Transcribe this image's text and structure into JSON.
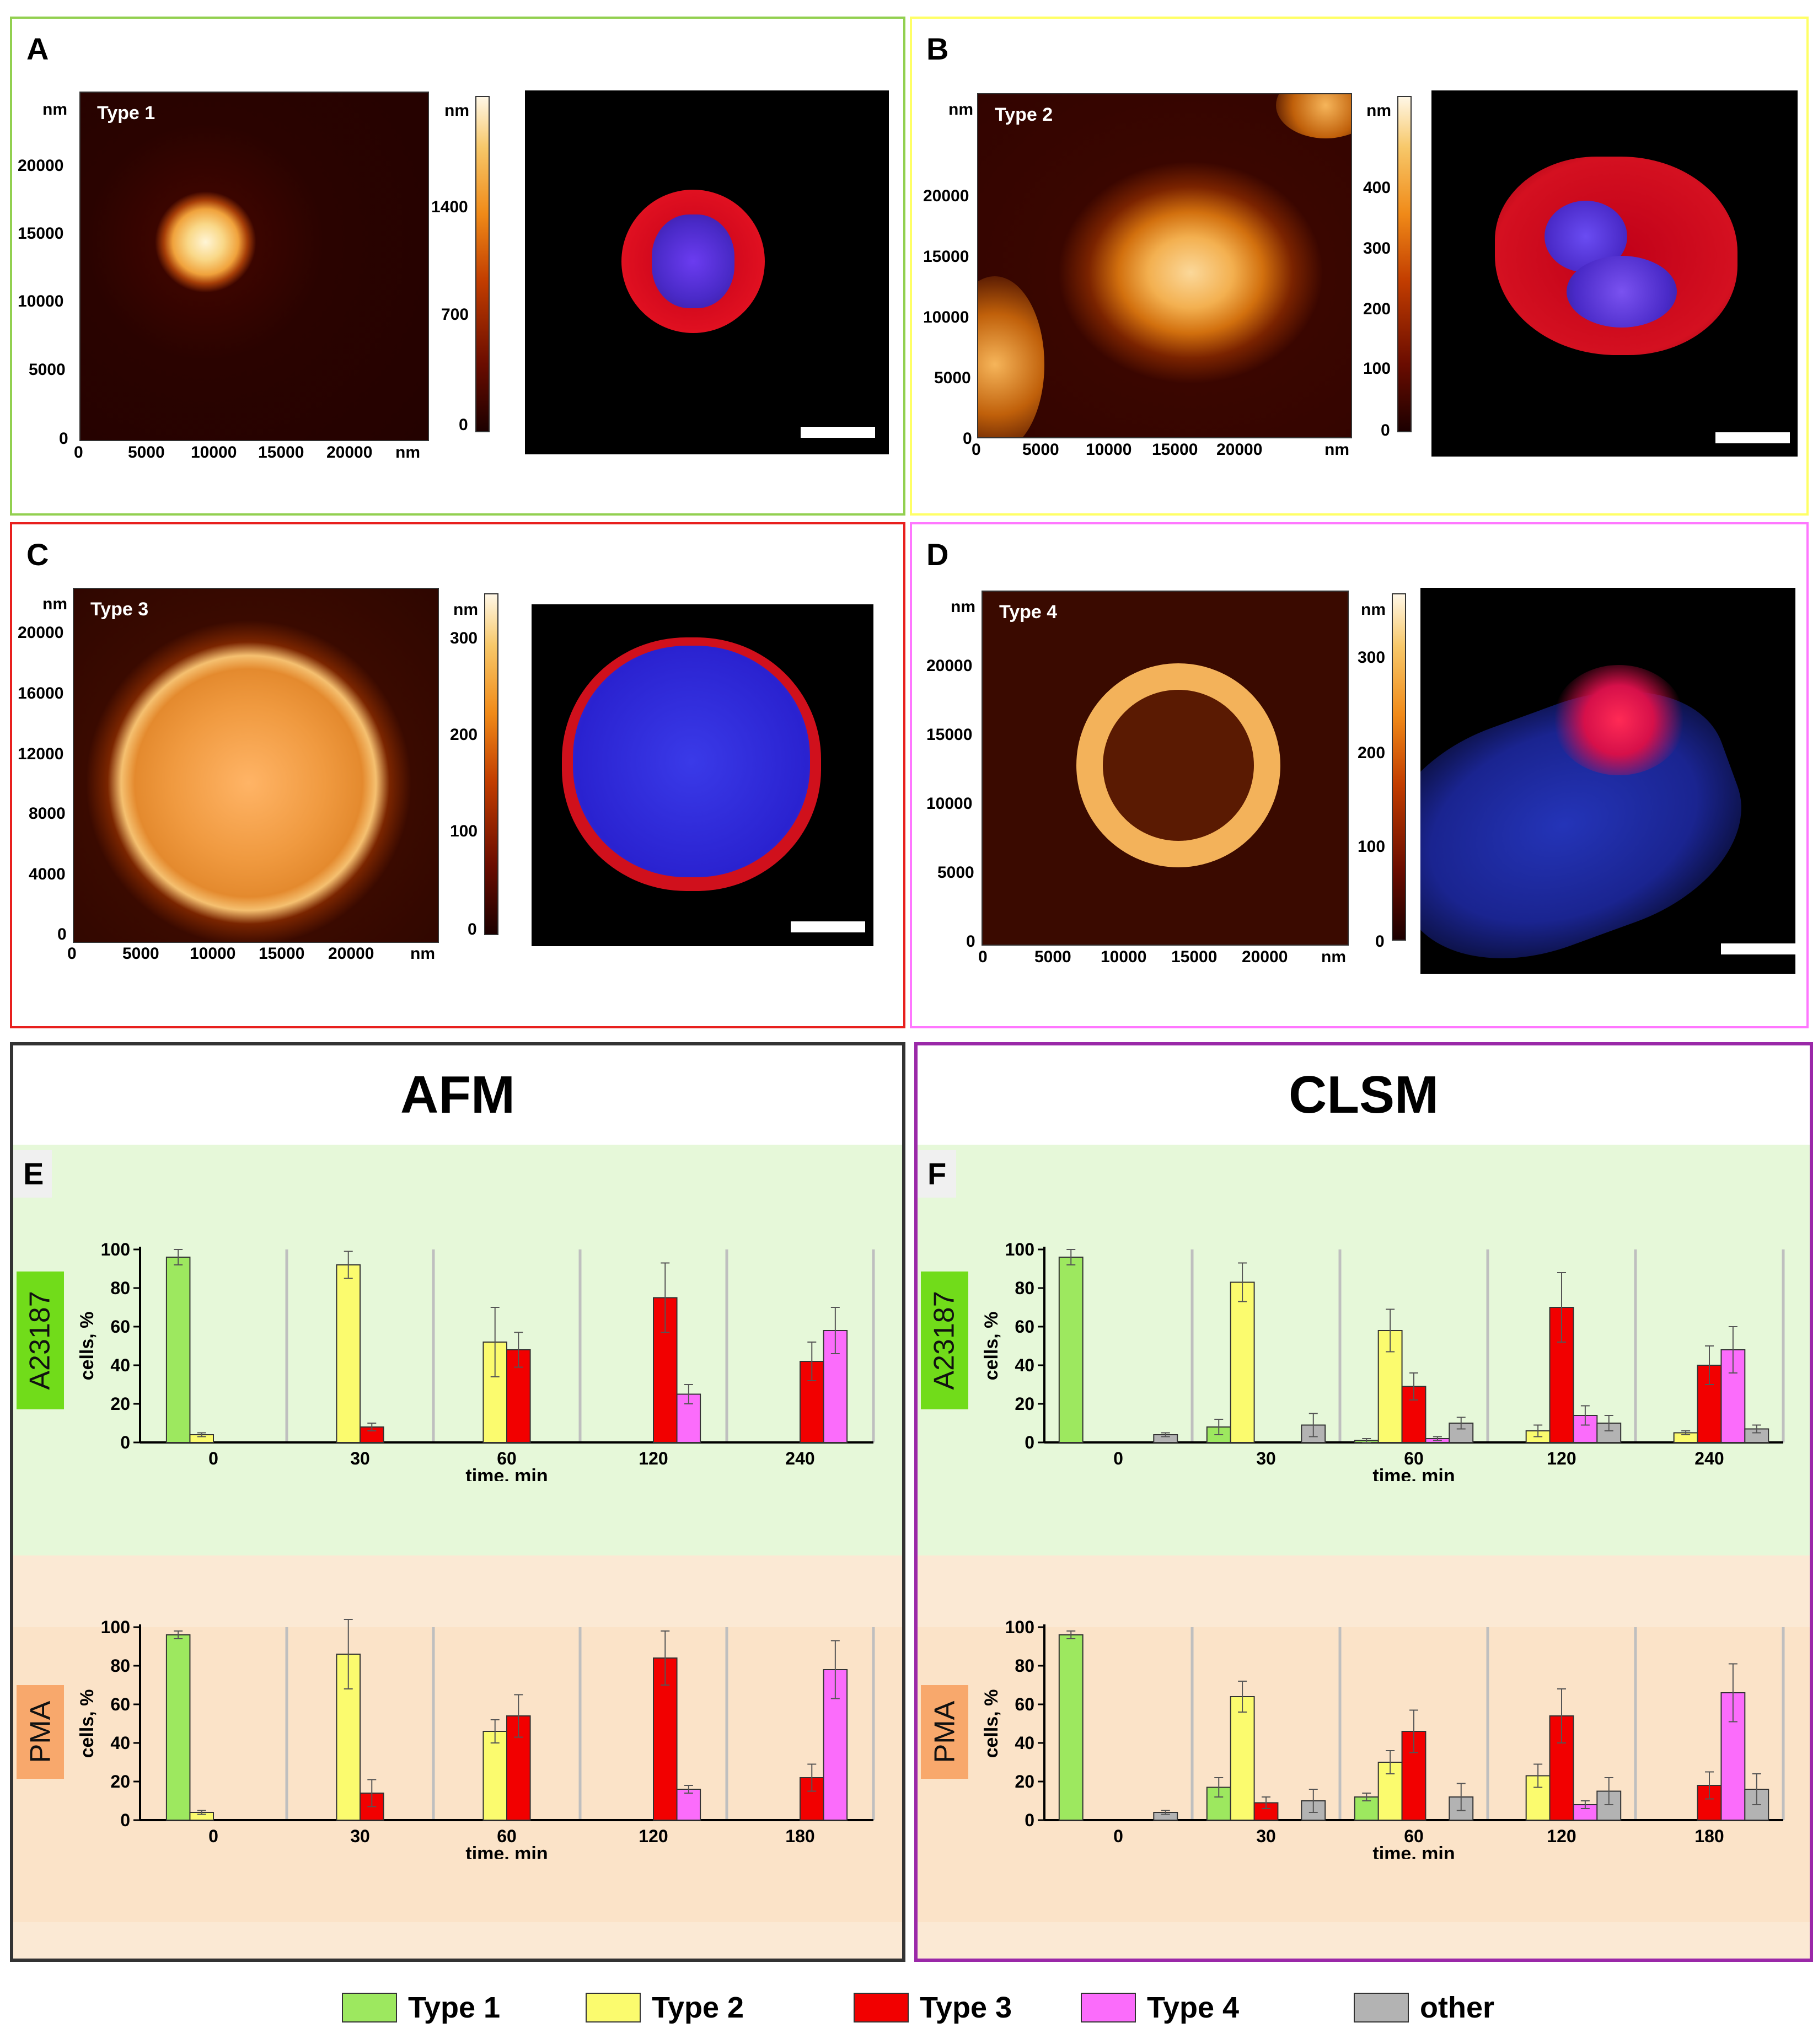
{
  "panels": {
    "A": {
      "label": "A",
      "type_label": "Type 1",
      "nm": "nm",
      "y_ticks": [
        "20000",
        "15000",
        "10000",
        "5000",
        "0"
      ],
      "x_ticks": [
        "0",
        "5000",
        "10000",
        "15000",
        "20000",
        "nm"
      ],
      "cbar_ticks": [
        "1400",
        "700",
        "0"
      ]
    },
    "B": {
      "label": "B",
      "type_label": "Type 2",
      "nm": "nm",
      "y_ticks": [
        "20000",
        "15000",
        "10000",
        "5000",
        "0"
      ],
      "x_ticks": [
        "0",
        "5000",
        "10000",
        "15000",
        "20000",
        "nm"
      ],
      "cbar_ticks": [
        "400",
        "300",
        "200",
        "100",
        "0"
      ]
    },
    "C": {
      "label": "C",
      "type_label": "Type 3",
      "nm": "nm",
      "y_ticks": [
        "20000",
        "16000",
        "12000",
        "8000",
        "4000",
        "0"
      ],
      "x_ticks": [
        "0",
        "5000",
        "10000",
        "15000",
        "20000",
        "nm"
      ],
      "cbar_ticks": [
        "300",
        "200",
        "100",
        "0"
      ]
    },
    "D": {
      "label": "D",
      "type_label": "Type 4",
      "nm": "nm",
      "y_ticks": [
        "20000",
        "15000",
        "10000",
        "5000",
        "0"
      ],
      "x_ticks": [
        "0",
        "5000",
        "10000",
        "15000",
        "20000",
        "nm"
      ],
      "cbar_ticks": [
        "300",
        "200",
        "100",
        "0"
      ]
    }
  },
  "section_titles": {
    "afm": "AFM",
    "clsm": "CLSM"
  },
  "section_labels": {
    "e": "E",
    "f": "F"
  },
  "row_labels": {
    "a23187": "A23187",
    "pma": "PMA"
  },
  "colors": {
    "type1": "#9de85f",
    "type2": "#fbfb6e",
    "type3": "#f20000",
    "type4": "#fb6cfb",
    "other": "#b3b3b3",
    "green_band": "#e6f8d9",
    "orange_band": "#fbe3c8",
    "a23187_tag": "#71dc1a",
    "pma_tag": "#f8a86c"
  },
  "legend": [
    {
      "label": "Type 1",
      "color": "#9de85f"
    },
    {
      "label": "Type 2",
      "color": "#fbfb6e"
    },
    {
      "label": "Type 3",
      "color": "#f20000"
    },
    {
      "label": "Type 4",
      "color": "#fb6cfb"
    },
    {
      "label": "other",
      "color": "#b3b3b3"
    }
  ],
  "chart_data": [
    {
      "id": "E-A23187",
      "type": "bar",
      "title": "AFM A23187",
      "xlabel": "time, min",
      "ylabel": "cells, %",
      "ylim": [
        0,
        100
      ],
      "y_ticks": [
        "0",
        "20",
        "40",
        "60",
        "80",
        "100"
      ],
      "categories": [
        "0",
        "30",
        "60",
        "120",
        "240"
      ],
      "series": [
        {
          "name": "Type 1",
          "values": [
            96,
            0,
            0,
            0,
            0
          ],
          "errors": [
            4,
            0,
            0,
            0,
            0
          ]
        },
        {
          "name": "Type 2",
          "values": [
            4,
            92,
            52,
            0,
            0
          ],
          "errors": [
            1,
            7,
            18,
            0,
            0
          ]
        },
        {
          "name": "Type 3",
          "values": [
            0,
            8,
            48,
            75,
            42
          ],
          "errors": [
            0,
            2,
            9,
            18,
            10
          ]
        },
        {
          "name": "Type 4",
          "values": [
            0,
            0,
            0,
            25,
            58
          ],
          "errors": [
            0,
            0,
            0,
            5,
            12
          ]
        }
      ]
    },
    {
      "id": "F-A23187",
      "type": "bar",
      "title": "CLSM A23187",
      "xlabel": "time, min",
      "ylabel": "cells, %",
      "ylim": [
        0,
        100
      ],
      "y_ticks": [
        "0",
        "20",
        "40",
        "60",
        "80",
        "100"
      ],
      "categories": [
        "0",
        "30",
        "60",
        "120",
        "240"
      ],
      "series": [
        {
          "name": "Type 1",
          "values": [
            96,
            8,
            1,
            0,
            0
          ],
          "errors": [
            4,
            4,
            1,
            0,
            0
          ]
        },
        {
          "name": "Type 2",
          "values": [
            0,
            83,
            58,
            6,
            5
          ],
          "errors": [
            0,
            10,
            11,
            3,
            1
          ]
        },
        {
          "name": "Type 3",
          "values": [
            0,
            0,
            29,
            70,
            40
          ],
          "errors": [
            0,
            0,
            7,
            18,
            10
          ]
        },
        {
          "name": "Type 4",
          "values": [
            0,
            0,
            2,
            14,
            48
          ],
          "errors": [
            0,
            0,
            1,
            5,
            12
          ]
        },
        {
          "name": "other",
          "values": [
            4,
            9,
            10,
            10,
            7
          ],
          "errors": [
            1,
            6,
            3,
            4,
            2
          ]
        }
      ]
    },
    {
      "id": "E-PMA",
      "type": "bar",
      "title": "AFM PMA",
      "xlabel": "time, min",
      "ylabel": "cells, %",
      "ylim": [
        0,
        100
      ],
      "y_ticks": [
        "0",
        "20",
        "40",
        "60",
        "80",
        "100"
      ],
      "categories": [
        "0",
        "30",
        "60",
        "120",
        "180"
      ],
      "series": [
        {
          "name": "Type 1",
          "values": [
            96,
            0,
            0,
            0,
            0
          ],
          "errors": [
            2,
            0,
            0,
            0,
            0
          ]
        },
        {
          "name": "Type 2",
          "values": [
            4,
            86,
            46,
            0,
            0
          ],
          "errors": [
            1,
            18,
            6,
            0,
            0
          ]
        },
        {
          "name": "Type 3",
          "values": [
            0,
            14,
            54,
            84,
            22
          ],
          "errors": [
            0,
            7,
            11,
            14,
            7
          ]
        },
        {
          "name": "Type 4",
          "values": [
            0,
            0,
            0,
            16,
            78
          ],
          "errors": [
            0,
            0,
            0,
            2,
            15
          ]
        }
      ]
    },
    {
      "id": "F-PMA",
      "type": "bar",
      "title": "CLSM PMA",
      "xlabel": "time, min",
      "ylabel": "cells, %",
      "ylim": [
        0,
        100
      ],
      "y_ticks": [
        "0",
        "20",
        "40",
        "60",
        "80",
        "100"
      ],
      "categories": [
        "0",
        "30",
        "60",
        "120",
        "180"
      ],
      "series": [
        {
          "name": "Type 1",
          "values": [
            96,
            17,
            12,
            0,
            0
          ],
          "errors": [
            2,
            5,
            2,
            0,
            0
          ]
        },
        {
          "name": "Type 2",
          "values": [
            0,
            64,
            30,
            23,
            0
          ],
          "errors": [
            0,
            8,
            6,
            6,
            0
          ]
        },
        {
          "name": "Type 3",
          "values": [
            0,
            9,
            46,
            54,
            18
          ],
          "errors": [
            0,
            3,
            11,
            14,
            7
          ]
        },
        {
          "name": "Type 4",
          "values": [
            0,
            0,
            0,
            8,
            66
          ],
          "errors": [
            0,
            0,
            0,
            2,
            15
          ]
        },
        {
          "name": "other",
          "values": [
            4,
            10,
            12,
            15,
            16
          ],
          "errors": [
            1,
            6,
            7,
            7,
            8
          ]
        }
      ]
    }
  ]
}
